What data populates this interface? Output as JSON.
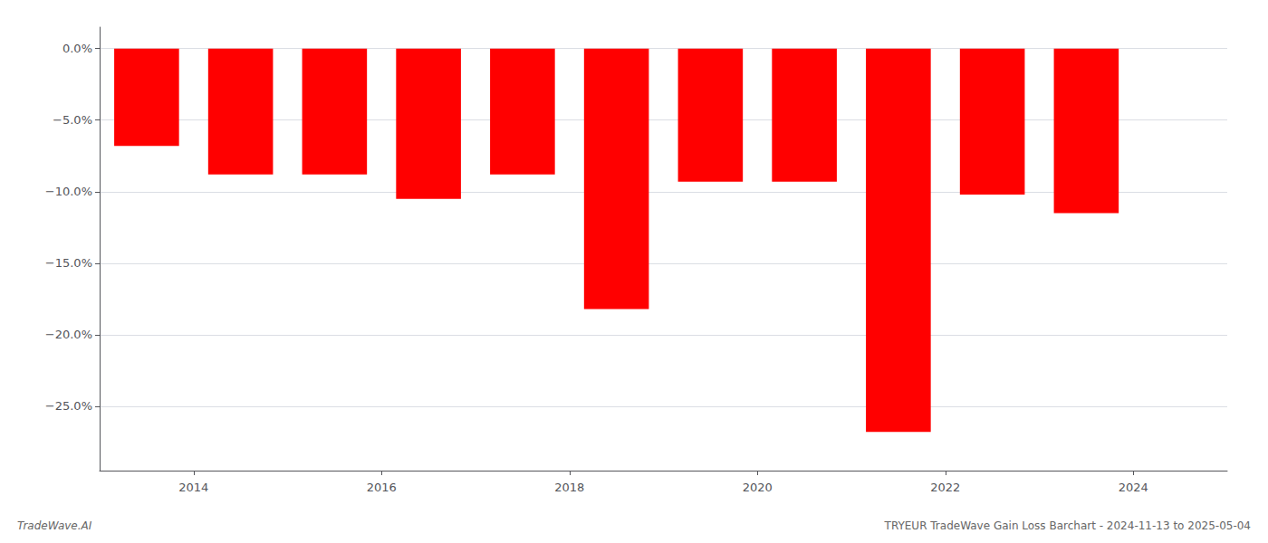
{
  "chart_data": {
    "type": "bar",
    "title": "TRYEUR TradeWave Gain Loss Barchart - 2024-11-13 to 2025-05-04",
    "annotations": [
      "TradeWave.AI"
    ],
    "x": [
      2013.5,
      2014.5,
      2015.5,
      2016.5,
      2017.5,
      2018.5,
      2019.5,
      2020.5,
      2021.5,
      2022.5,
      2023.5
    ],
    "values": [
      -6.8,
      -8.8,
      -8.8,
      -10.5,
      -8.8,
      -18.2,
      -9.3,
      -9.3,
      -26.8,
      -10.2,
      -11.5
    ],
    "color": "#ff0000",
    "xlim": [
      2013.0,
      2025.0
    ],
    "xticks": [
      2014,
      2016,
      2018,
      2020,
      2022,
      2024
    ],
    "ylim": [
      -29.5,
      1.5
    ],
    "yticks": [
      {
        "value": 0,
        "label": "0.0%"
      },
      {
        "value": -5,
        "label": "−5.0%"
      },
      {
        "value": -10,
        "label": "−10.0%"
      },
      {
        "value": -15,
        "label": "−15.0%"
      },
      {
        "value": -20,
        "label": "−20.0%"
      },
      {
        "value": -25,
        "label": "−25.0%"
      }
    ],
    "grid": true
  }
}
